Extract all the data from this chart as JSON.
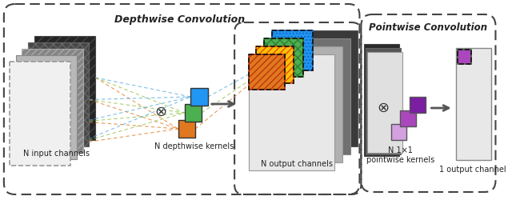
{
  "bg_color": "#ffffff",
  "title_depthwise": "Depthwise Convolution",
  "title_pointwise": "Pointwise Convolution",
  "input_label": "N input channels",
  "kernel_label": "N depthwise kernels",
  "output_label": "N output channels",
  "pw_kernel_label": "N 1×1\npointwise kernels",
  "pw_output_label": "1 output channel",
  "kernel_colors_dw": [
    "#e07820",
    "#4caf50",
    "#2196f3"
  ],
  "kernel_colors_pw": [
    "#d4a0e0",
    "#ab47bc",
    "#7b1fa2"
  ],
  "dashed_line_colors": [
    "#e07820",
    "#90c040",
    "#56aae0"
  ]
}
